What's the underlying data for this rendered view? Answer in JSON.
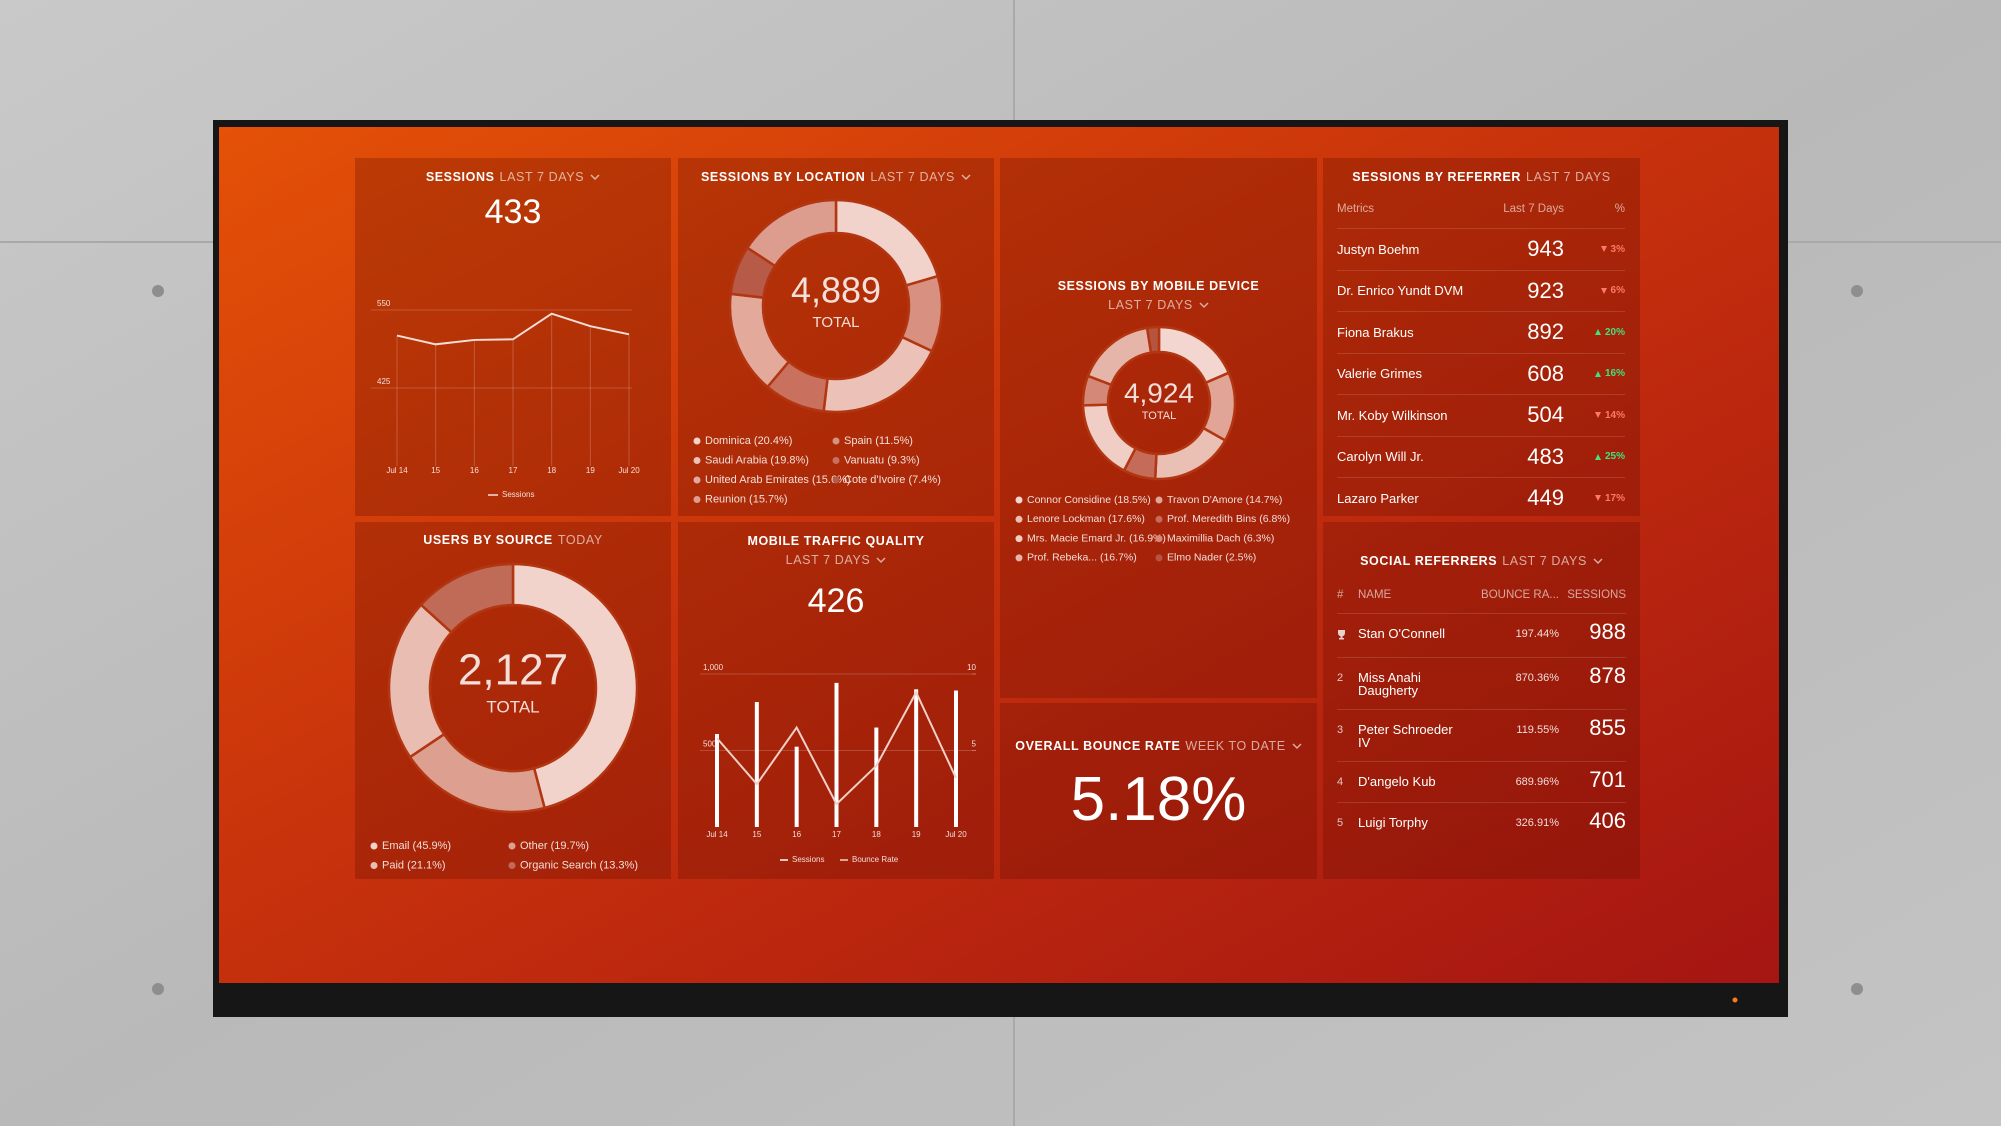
{
  "chart_data": [
    {
      "type": "line",
      "title": "SESSIONS",
      "period": "LAST 7 DAYS",
      "value": 433,
      "categories": [
        "Jul 14",
        "15",
        "16",
        "17",
        "18",
        "19",
        "Jul 20"
      ],
      "series": [
        {
          "name": "Sessions",
          "color": "#f6ddd6",
          "values": [
            509,
            495,
            502,
            503,
            544,
            524,
            511
          ]
        }
      ],
      "ylim": [
        300,
        570
      ],
      "yticks": [
        425,
        550
      ],
      "grid": true
    },
    {
      "type": "pie",
      "title": "SESSIONS BY LOCATION",
      "period": "LAST 7 DAYS",
      "total": "4,889",
      "total_caption": "TOTAL",
      "categories": [
        "Dominica (20.4%)",
        "Spain (11.5%)",
        "Saudi Arabia (19.8%)",
        "Vanuatu (9.3%)",
        "United Arab Emirates (15.6%)",
        "Cote d'Ivoire (7.4%)",
        "Reunion (15.7%)"
      ],
      "values": [
        20.4,
        11.5,
        19.8,
        9.3,
        15.6,
        7.4,
        15.7
      ],
      "colors": [
        "#f1d3cc",
        "#d89080",
        "#ecc2b8",
        "#c9705f",
        "#e3aa9c",
        "#b85a48",
        "#dc9d8e"
      ]
    },
    {
      "type": "pie",
      "title": "SESSIONS BY MOBILE DEVICE",
      "period": "LAST 7 DAYS",
      "total": "4,924",
      "total_caption": "TOTAL",
      "categories": [
        "Connor Considine (18.5%)",
        "Travon D'Amore (14.7%)",
        "Lenore Lockman (17.6%)",
        "Prof. Meredith Bins (6.8%)",
        "Mrs. Macie Emard Jr. (16.9%)",
        "Maximillia Dach (6.3%)",
        "Prof. Rebeka... (16.7%)",
        "Elmo Nader (2.5%)"
      ],
      "values": [
        18.5,
        14.7,
        17.6,
        6.8,
        16.9,
        6.3,
        16.7,
        2.5
      ],
      "colors": [
        "#f2d6cf",
        "#e0a596",
        "#eac0b5",
        "#c56b59",
        "#f0cec6",
        "#d48978",
        "#e6b5a9",
        "#b5553f"
      ]
    },
    {
      "type": "pie",
      "title": "USERS BY SOURCE",
      "period": "TODAY",
      "total": "2,127",
      "total_caption": "TOTAL",
      "categories": [
        "Email (45.9%)",
        "Other (19.7%)",
        "Paid (21.1%)",
        "Organic Search (13.3%)"
      ],
      "values": [
        45.9,
        19.7,
        21.1,
        13.3
      ],
      "colors": [
        "#f2d3cc",
        "#dc9f90",
        "#e9bdb2",
        "#c06a58"
      ]
    },
    {
      "type": "combo",
      "title": "MOBILE TRAFFIC QUALITY",
      "period": "LAST 7 DAYS",
      "value": 426,
      "categories": [
        "Jul 14",
        "15",
        "16",
        "17",
        "18",
        "19",
        "Jul 20"
      ],
      "series": [
        {
          "name": "Sessions",
          "type": "bar",
          "color": "#ffffff",
          "values": [
            608,
            817,
            525,
            942,
            650,
            900,
            892
          ]
        },
        {
          "name": "Bounce Rate",
          "type": "line",
          "axis": "y2",
          "color": "#f0d0c8",
          "values": [
            5.8,
            2.8,
            6.5,
            1.5,
            4.0,
            8.8,
            3.2
          ]
        }
      ],
      "ylim": [
        0,
        1000
      ],
      "yticks": [
        500,
        {
          "value": 1000,
          "label": "1,000"
        }
      ],
      "y2lim": [
        0,
        10
      ],
      "y2ticks": [
        5,
        10
      ],
      "grid": true
    }
  ],
  "referrers": {
    "title": "SESSIONS BY REFERRER",
    "period": "LAST 7 DAYS",
    "columns": [
      "Metrics",
      "Last 7 Days",
      "%"
    ],
    "rows": [
      {
        "name": "Justyn Boehm",
        "value": 943,
        "change": "3%",
        "trend": "down"
      },
      {
        "name": "Dr. Enrico Yundt DVM",
        "value": 923,
        "change": "6%",
        "trend": "down"
      },
      {
        "name": "Fiona Brakus",
        "value": 892,
        "change": "20%",
        "trend": "up"
      },
      {
        "name": "Valerie Grimes",
        "value": 608,
        "change": "16%",
        "trend": "up"
      },
      {
        "name": "Mr. Koby Wilkinson",
        "value": 504,
        "change": "14%",
        "trend": "down"
      },
      {
        "name": "Carolyn Will Jr.",
        "value": 483,
        "change": "25%",
        "trend": "up"
      },
      {
        "name": "Lazaro Parker",
        "value": 449,
        "change": "17%",
        "trend": "down"
      }
    ]
  },
  "social": {
    "title": "SOCIAL REFERRERS",
    "period": "LAST 7 DAYS",
    "columns": [
      "#",
      "NAME",
      "BOUNCE RA...",
      "SESSIONS"
    ],
    "rows": [
      {
        "name": "Stan O'Connell",
        "bounce": "197.44%",
        "sessions": 988
      },
      {
        "rank": 2,
        "name": "Miss Anahi Daugherty",
        "bounce": "870.36%",
        "sessions": 878
      },
      {
        "rank": 3,
        "name": "Peter Schroeder IV",
        "bounce": "119.55%",
        "sessions": 855
      },
      {
        "rank": 4,
        "name": "D'angelo Kub",
        "bounce": "689.96%",
        "sessions": 701
      },
      {
        "rank": 5,
        "name": "Luigi Torphy",
        "bounce": "326.91%",
        "sessions": 406
      }
    ]
  },
  "bounce": {
    "title": "OVERALL BOUNCE RATE",
    "period": "WEEK TO DATE",
    "value": "5.18%"
  }
}
